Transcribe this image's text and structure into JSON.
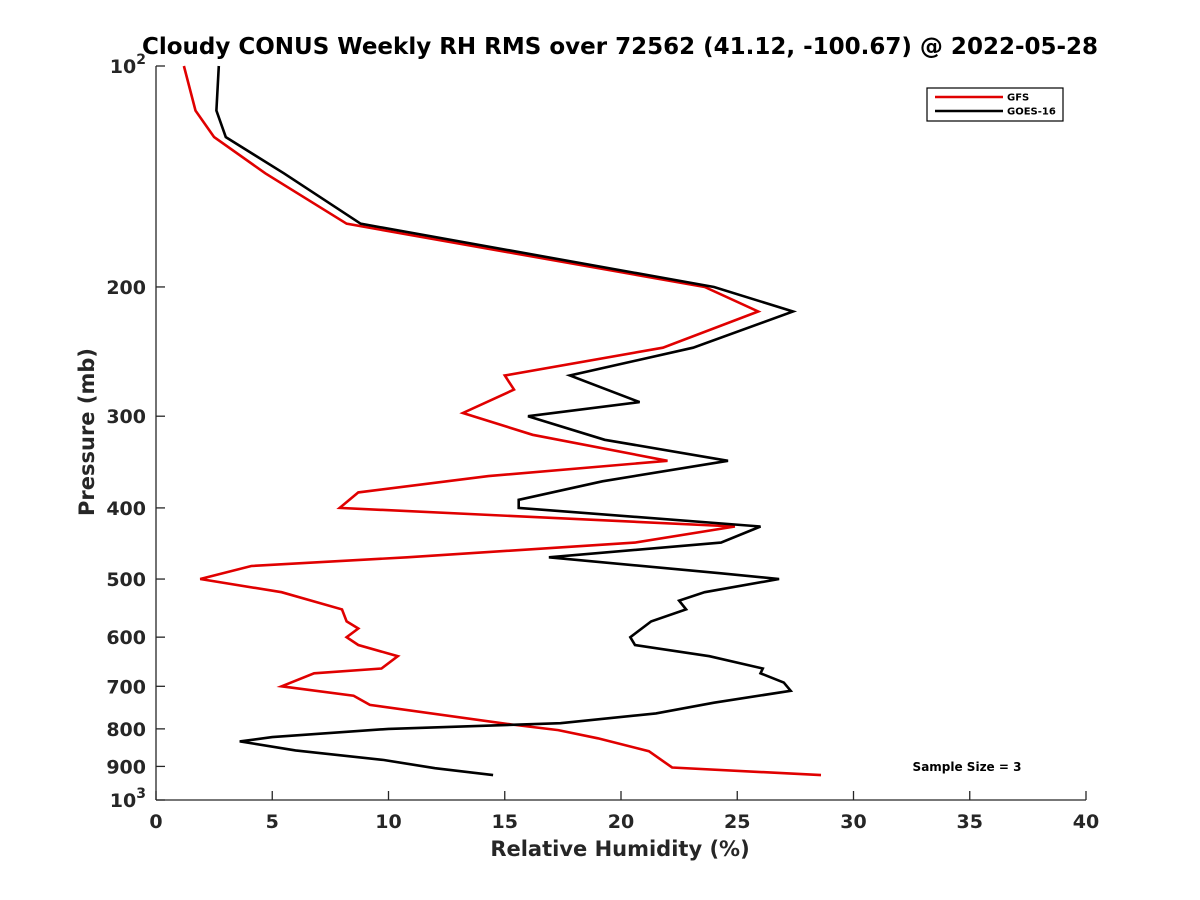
{
  "chart_data": {
    "type": "line",
    "title": "Cloudy CONUS Weekly RH RMS over 72562 (41.12, -100.67) @ 2022-05-28",
    "xlabel": "Relative Humidity (%)",
    "ylabel": "Pressure (mb)",
    "xlim": [
      0,
      40
    ],
    "ylim": [
      100,
      1000
    ],
    "y_scale": "log",
    "y_inverted": true,
    "x_ticks": [
      "0",
      "5",
      "10",
      "15",
      "20",
      "25",
      "30",
      "35",
      "40"
    ],
    "y_ticks": [
      {
        "value": 100,
        "label": "10",
        "sup": "2"
      },
      {
        "value": 200,
        "label": "200",
        "sup": ""
      },
      {
        "value": 300,
        "label": "300",
        "sup": ""
      },
      {
        "value": 400,
        "label": "400",
        "sup": ""
      },
      {
        "value": 500,
        "label": "500",
        "sup": ""
      },
      {
        "value": 600,
        "label": "600",
        "sup": ""
      },
      {
        "value": 700,
        "label": "700",
        "sup": ""
      },
      {
        "value": 800,
        "label": "800",
        "sup": ""
      },
      {
        "value": 900,
        "label": "900",
        "sup": ""
      },
      {
        "value": 1000,
        "label": "10",
        "sup": "3"
      }
    ],
    "legend": "top-right",
    "annotation": "Sample Size = 3",
    "series": [
      {
        "name": "GFS",
        "color": "#e00000",
        "points": [
          [
            1.2,
            100
          ],
          [
            1.7,
            115
          ],
          [
            2.5,
            125
          ],
          [
            4.7,
            140
          ],
          [
            8.2,
            164
          ],
          [
            23.6,
            200
          ],
          [
            25.9,
            216
          ],
          [
            21.8,
            242
          ],
          [
            15.0,
            264
          ],
          [
            15.4,
            276
          ],
          [
            13.2,
            297
          ],
          [
            16.2,
            318
          ],
          [
            22.0,
            345
          ],
          [
            14.3,
            362
          ],
          [
            8.7,
            381
          ],
          [
            7.9,
            400
          ],
          [
            24.9,
            424
          ],
          [
            20.6,
            446
          ],
          [
            10.8,
            467
          ],
          [
            4.1,
            480
          ],
          [
            1.9,
            500
          ],
          [
            5.4,
            521
          ],
          [
            8.0,
            550
          ],
          [
            8.2,
            571
          ],
          [
            8.7,
            584
          ],
          [
            8.2,
            600
          ],
          [
            8.7,
            615
          ],
          [
            10.4,
            637
          ],
          [
            9.7,
            662
          ],
          [
            6.8,
            672
          ],
          [
            5.4,
            700
          ],
          [
            8.5,
            721
          ],
          [
            9.2,
            742
          ],
          [
            15.3,
            789
          ],
          [
            17.3,
            803
          ],
          [
            19.0,
            824
          ],
          [
            21.2,
            858
          ],
          [
            22.2,
            903
          ],
          [
            28.6,
            925
          ]
        ]
      },
      {
        "name": "GOES-16",
        "color": "#000000",
        "points": [
          [
            2.7,
            100
          ],
          [
            2.6,
            115
          ],
          [
            3.0,
            125
          ],
          [
            5.5,
            140
          ],
          [
            8.8,
            164
          ],
          [
            24.0,
            200
          ],
          [
            27.4,
            216
          ],
          [
            23.1,
            242
          ],
          [
            17.8,
            264
          ],
          [
            20.8,
            287
          ],
          [
            16.0,
            300
          ],
          [
            19.3,
            323
          ],
          [
            24.6,
            345
          ],
          [
            19.2,
            368
          ],
          [
            15.6,
            390
          ],
          [
            15.6,
            400
          ],
          [
            26.0,
            424
          ],
          [
            24.3,
            446
          ],
          [
            16.9,
            467
          ],
          [
            24.3,
            491
          ],
          [
            26.8,
            500
          ],
          [
            23.6,
            521
          ],
          [
            22.5,
            535
          ],
          [
            22.8,
            550
          ],
          [
            21.3,
            571
          ],
          [
            20.4,
            600
          ],
          [
            20.6,
            615
          ],
          [
            23.8,
            637
          ],
          [
            26.1,
            662
          ],
          [
            26.0,
            672
          ],
          [
            27.0,
            692
          ],
          [
            27.3,
            710
          ],
          [
            24.0,
            737
          ],
          [
            21.5,
            762
          ],
          [
            17.4,
            786
          ],
          [
            10.0,
            800
          ],
          [
            5.0,
            821
          ],
          [
            3.6,
            832
          ],
          [
            6.0,
            856
          ],
          [
            9.8,
            882
          ],
          [
            12.0,
            905
          ],
          [
            14.5,
            925
          ]
        ]
      }
    ]
  }
}
